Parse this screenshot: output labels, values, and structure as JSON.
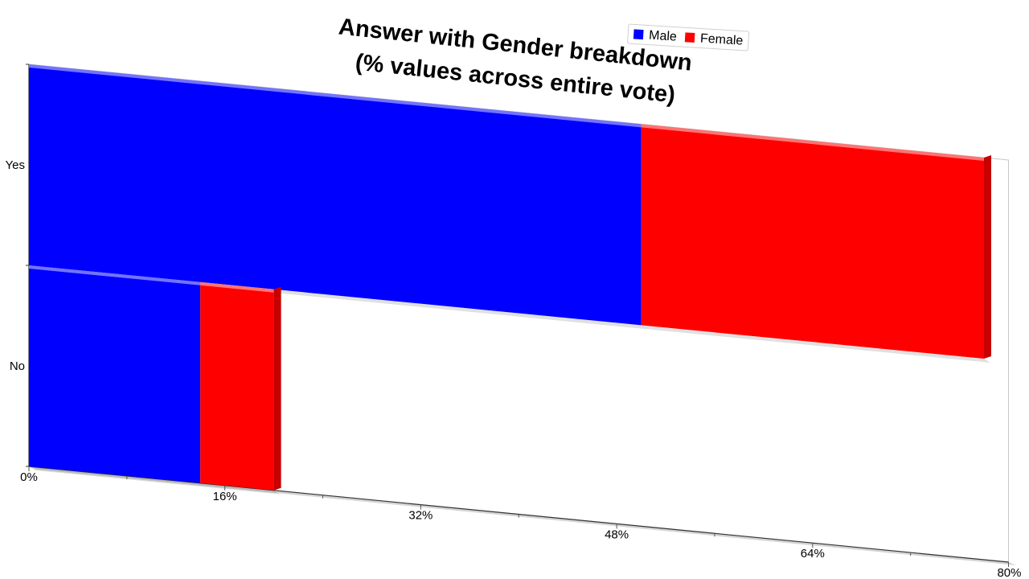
{
  "chart_data": {
    "type": "bar",
    "orientation": "horizontal",
    "stacked": true,
    "title_lines": [
      "Answer with Gender breakdown",
      "(% values across entire vote)"
    ],
    "categories": [
      "Yes",
      "No"
    ],
    "series": [
      {
        "name": "Male",
        "color": "#0000ff",
        "values": [
          50,
          14
        ]
      },
      {
        "name": "Female",
        "color": "#ff0000",
        "values": [
          28,
          6
        ]
      }
    ],
    "xlim": [
      0,
      80
    ],
    "x_ticks": [
      "0%",
      "16%",
      "32%",
      "48%",
      "64%",
      "80%"
    ],
    "legend_position": "top-right",
    "grid": false
  }
}
